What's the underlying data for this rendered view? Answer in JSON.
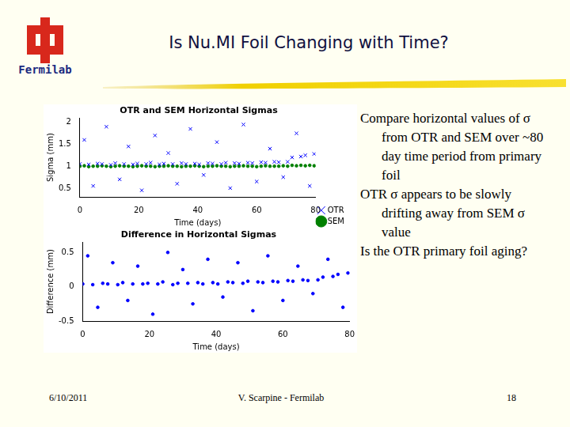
{
  "slide": {
    "logo_text": "Fermilab",
    "title": "Is Nu.MI Foil Changing with Time?",
    "bullets": [
      "Compare horizontal values of σ from OTR and SEM over ~80 day time period from primary foil",
      "OTR σ appears to be slowly drifting away from SEM σ value",
      "Is the OTR primary foil aging?"
    ],
    "footer": {
      "date": "6/10/2011",
      "author": "V. Scarpine - Fermilab",
      "page": 18
    }
  },
  "chart_data": [
    {
      "type": "scatter",
      "title": "OTR and SEM Horizontal Sigmas",
      "x_label": "Time (days)",
      "y_label": "Sigma (mm)",
      "x": [
        0,
        1.5,
        3,
        4.5,
        6,
        7.5,
        9,
        10.5,
        12,
        13.5,
        15,
        16.5,
        18,
        19.5,
        21,
        22.5,
        24,
        25.5,
        27,
        28.5,
        30,
        31.5,
        33,
        34.5,
        36,
        37.5,
        39,
        40.5,
        42,
        43.5,
        45,
        46.5,
        48,
        49.5,
        51,
        52.5,
        54,
        55.5,
        57,
        58.5,
        60,
        61.5,
        63,
        64.5,
        66,
        67.5,
        69,
        70.5,
        72,
        73.5,
        75,
        76.5,
        78,
        79.5
      ],
      "series": [
        {
          "name": "OTR",
          "color": "#0000ff",
          "marker": "x",
          "values": [
            1.05,
            1.6,
            1.04,
            0.55,
            1.06,
            1.05,
            1.9,
            1.03,
            1.07,
            0.7,
            1.05,
            1.45,
            1.04,
            1.06,
            0.45,
            1.05,
            1.08,
            1.7,
            1.04,
            1.06,
            1.3,
            1.05,
            0.6,
            1.07,
            1.05,
            1.85,
            1.06,
            1.04,
            0.8,
            1.07,
            1.06,
            1.55,
            1.05,
            1.08,
            0.5,
            1.07,
            1.06,
            1.95,
            1.08,
            1.07,
            0.65,
            1.09,
            1.08,
            1.4,
            1.1,
            1.09,
            0.75,
            1.1,
            1.2,
            1.75,
            1.22,
            1.25,
            0.55,
            1.28
          ]
        },
        {
          "name": "SEM",
          "color": "#008000",
          "marker": "dot",
          "values": [
            1.0,
            1.01,
            0.99,
            1.0,
            1.0,
            1.01,
            1.0,
            0.99,
            1.0,
            1.01,
            1.0,
            1.0,
            0.99,
            1.0,
            1.01,
            1.0,
            1.0,
            0.99,
            1.0,
            1.0,
            1.01,
            1.0,
            1.0,
            0.99,
            1.0,
            1.0,
            1.01,
            1.0,
            0.99,
            1.0,
            1.0,
            1.01,
            1.0,
            1.0,
            0.99,
            1.0,
            1.0,
            1.01,
            1.0,
            1.0,
            0.99,
            1.0,
            1.01,
            1.0,
            1.0,
            1.0,
            1.01,
            1.0,
            1.02,
            1.01,
            1.02,
            1.01,
            1.02,
            1.01
          ]
        }
      ],
      "xlim": [
        0,
        80
      ],
      "xticks": [
        0,
        20,
        40,
        60,
        80
      ],
      "ylim": [
        0.3,
        2.1
      ],
      "yticks": [
        0.5,
        1,
        1.5,
        2
      ],
      "grid": false,
      "legend": "lower right"
    },
    {
      "type": "scatter",
      "title": "Difference in Horizontal Sigmas",
      "x_label": "Time (days)",
      "y_label": "Difference (mm)",
      "x": [
        0,
        1.5,
        3,
        4.5,
        6,
        7.5,
        9,
        10.5,
        12,
        13.5,
        15,
        16.5,
        18,
        19.5,
        21,
        22.5,
        24,
        25.5,
        27,
        28.5,
        30,
        31.5,
        33,
        34.5,
        36,
        37.5,
        39,
        40.5,
        42,
        43.5,
        45,
        46.5,
        48,
        49.5,
        51,
        52.5,
        54,
        55.5,
        57,
        58.5,
        60,
        61.5,
        63,
        64.5,
        66,
        67.5,
        69,
        70.5,
        72,
        73.5,
        75,
        76.5,
        78,
        79.5
      ],
      "series": [
        {
          "color": "#0000ff",
          "marker": "dot",
          "values": [
            0.04,
            0.45,
            0.03,
            -0.3,
            0.05,
            0.04,
            0.35,
            0.03,
            0.06,
            -0.2,
            0.04,
            0.3,
            0.04,
            0.05,
            -0.4,
            0.04,
            0.07,
            0.5,
            0.03,
            0.05,
            0.25,
            0.05,
            -0.25,
            0.06,
            0.04,
            0.4,
            0.06,
            0.04,
            -0.15,
            0.07,
            0.06,
            0.35,
            0.05,
            0.08,
            -0.35,
            0.07,
            0.06,
            0.45,
            0.08,
            0.07,
            -0.2,
            0.09,
            0.08,
            0.3,
            0.1,
            0.09,
            -0.1,
            0.1,
            0.14,
            0.4,
            0.15,
            0.18,
            -0.3,
            0.2
          ]
        }
      ],
      "xlim": [
        0,
        80
      ],
      "xticks": [
        0,
        20,
        40,
        60,
        80
      ],
      "ylim": [
        -0.5,
        0.65
      ],
      "yticks": [
        -0.5,
        0,
        0.5
      ],
      "grid": false
    }
  ]
}
